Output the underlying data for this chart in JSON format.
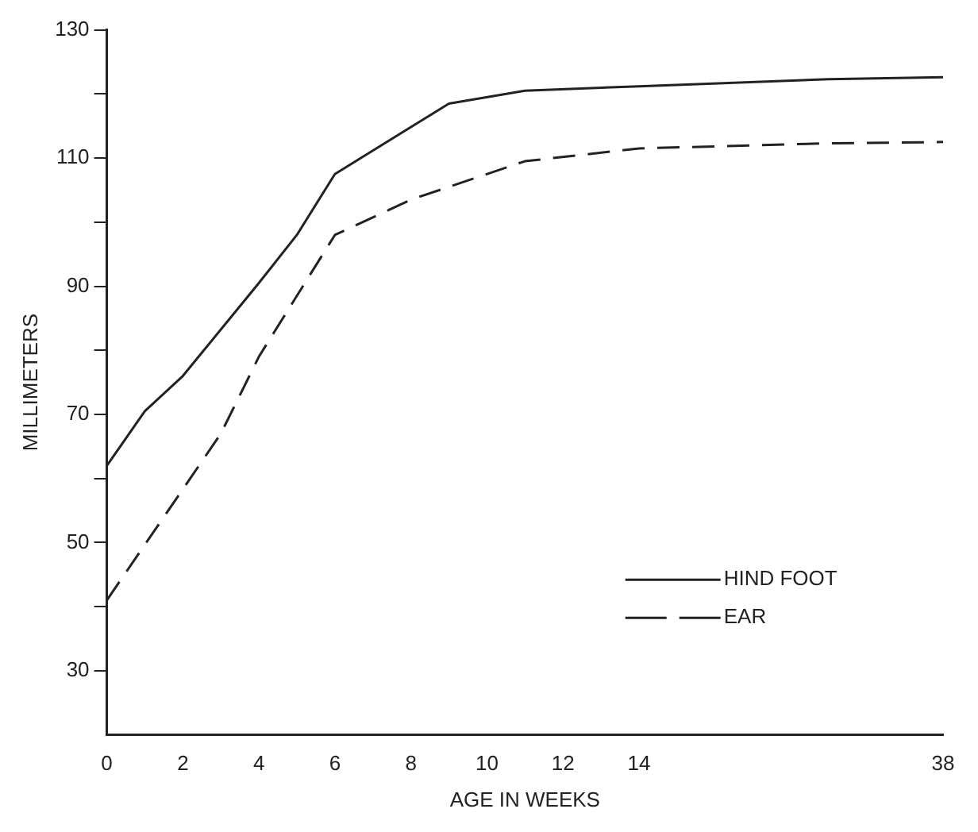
{
  "chart_data": {
    "type": "line",
    "xlabel": "AGE IN WEEKS",
    "ylabel": "MILLIMETERS",
    "categories": [
      "0",
      null,
      "2",
      null,
      "4",
      null,
      "6",
      null,
      "8",
      null,
      "10",
      null,
      "12",
      null,
      "14",
      null,
      null,
      null,
      null,
      null,
      null,
      null,
      "38"
    ],
    "series": [
      {
        "name": "HIND FOOT",
        "color": "#222222",
        "line_style": "solid",
        "values": [
          62,
          70.5,
          76,
          null,
          90.5,
          98,
          107.5,
          null,
          null,
          118.5,
          null,
          120.5,
          null,
          null,
          121.2,
          null,
          null,
          null,
          null,
          122.3,
          null,
          null,
          122.6
        ]
      },
      {
        "name": "EAR",
        "color": "#222222",
        "line_style": "dashed",
        "values": [
          41,
          null,
          null,
          67,
          79,
          null,
          98,
          null,
          103.5,
          null,
          null,
          109.5,
          null,
          null,
          111.5,
          null,
          null,
          null,
          null,
          112.3,
          null,
          null,
          112.5
        ]
      }
    ],
    "ylim": [
      20,
      130
    ],
    "yticks": [
      {
        "value": 30,
        "label": "30"
      },
      {
        "value": 40,
        "label": null
      },
      {
        "value": 50,
        "label": "50"
      },
      {
        "value": 60,
        "label": null
      },
      {
        "value": 70,
        "label": "70"
      },
      {
        "value": 80,
        "label": null
      },
      {
        "value": 90,
        "label": "90"
      },
      {
        "value": 100,
        "label": null
      },
      {
        "value": 110,
        "label": "110"
      },
      {
        "value": 120,
        "label": null
      },
      {
        "value": 130,
        "label": "130"
      }
    ],
    "grid": false,
    "legend": "bottom right",
    "marker": "none"
  }
}
